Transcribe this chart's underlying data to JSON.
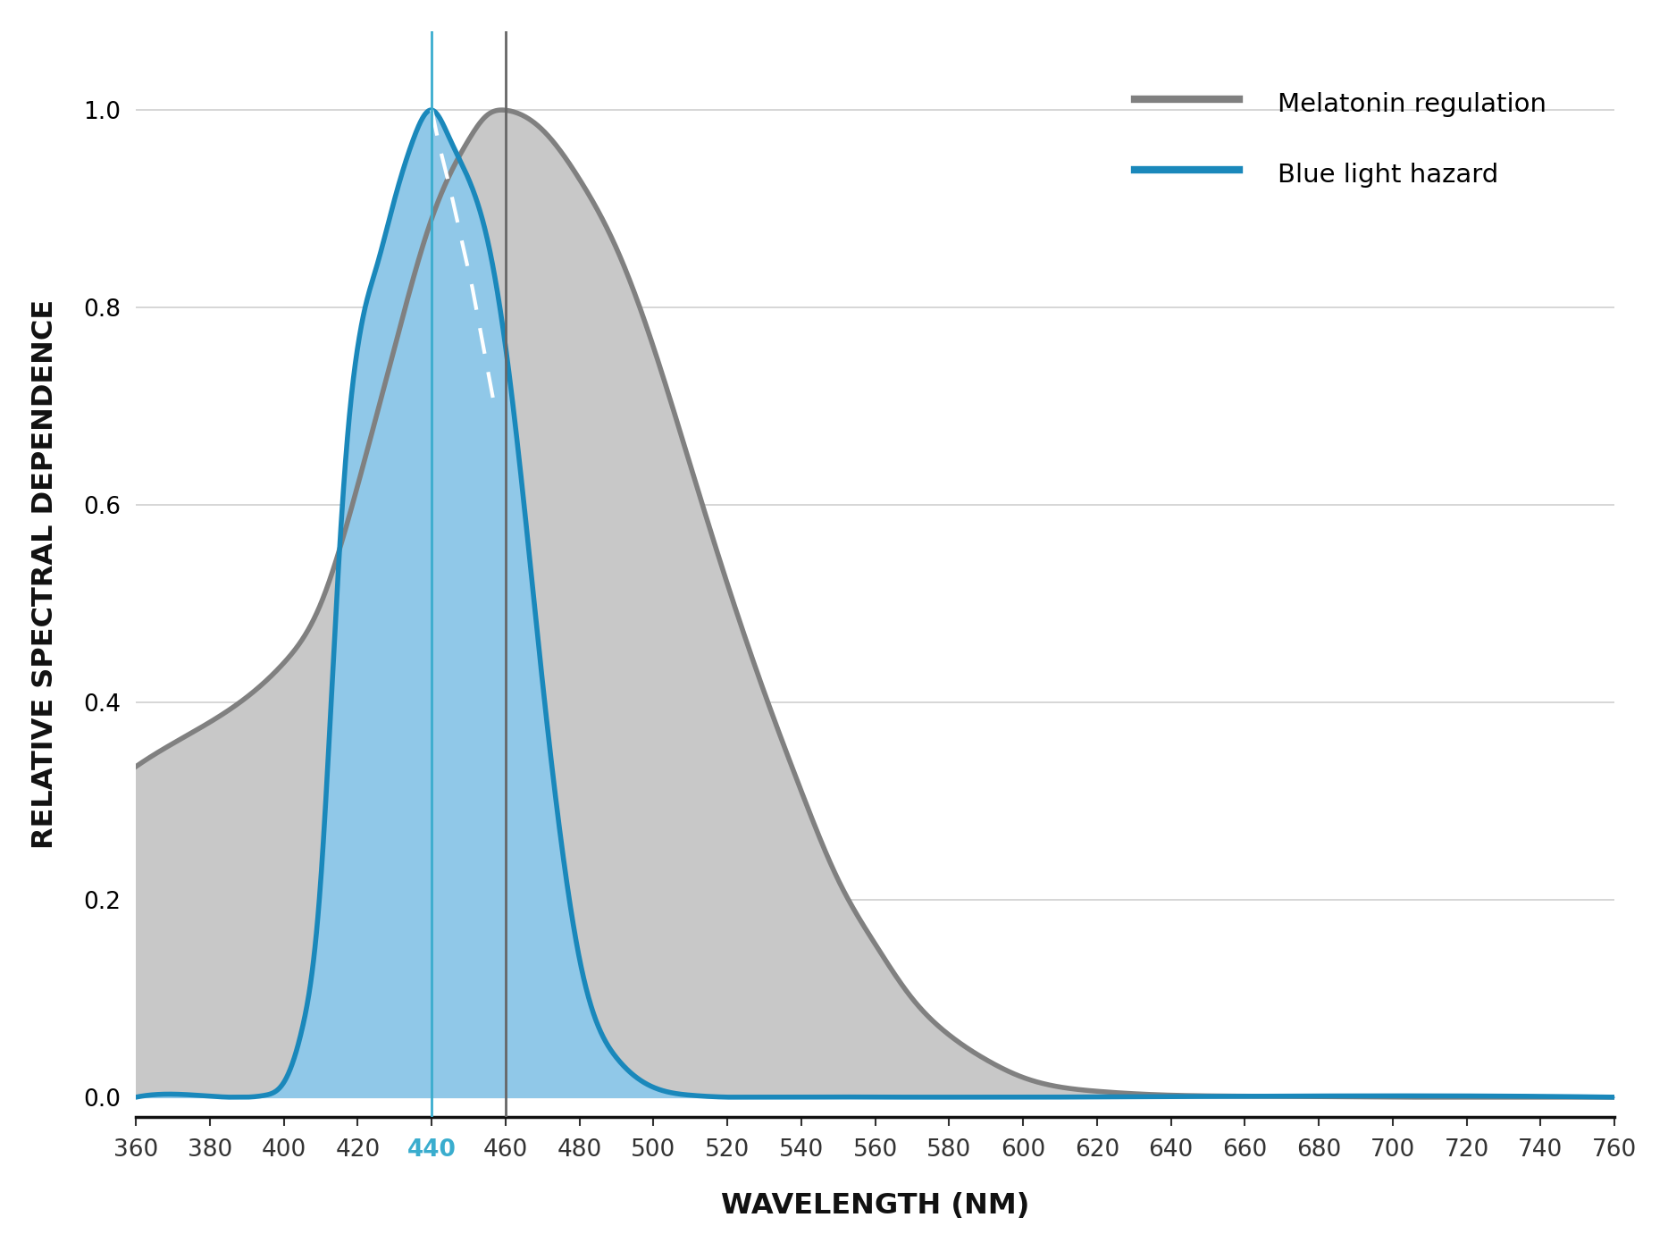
{
  "background_color": "#ffffff",
  "xlabel": "WAVELENGTH (NM)",
  "ylabel": "RELATIVE SPECTRAL DEPENDENCE",
  "xlim": [
    360,
    760
  ],
  "ylim": [
    -0.02,
    1.08
  ],
  "xticks": [
    360,
    380,
    400,
    420,
    440,
    460,
    480,
    500,
    520,
    540,
    560,
    580,
    600,
    620,
    640,
    660,
    680,
    700,
    720,
    740,
    760
  ],
  "yticks": [
    0.0,
    0.2,
    0.4,
    0.6,
    0.8,
    1.0
  ],
  "x440_color": "#3aadce",
  "x460_color": "#666666",
  "gray_fill_color": "#c8c8c8",
  "blue_fill_color": "#90c8e8",
  "blue_line_color": "#1a88bb",
  "gray_line_color": "#808080",
  "legend_gray_label": "Melatonin regulation",
  "legend_blue_label": "Blue light hazard",
  "tick_fontsize": 19,
  "axis_label_fontsize": 23,
  "legend_fontsize": 21,
  "melatonin_knots_x": [
    360,
    380,
    400,
    410,
    420,
    430,
    440,
    450,
    455,
    460,
    470,
    480,
    490,
    500,
    510,
    520,
    530,
    540,
    550,
    560,
    570,
    580,
    590,
    600,
    620,
    640,
    660,
    700,
    760
  ],
  "melatonin_knots_y": [
    0.335,
    0.38,
    0.44,
    0.5,
    0.62,
    0.76,
    0.89,
    0.97,
    0.995,
    1.0,
    0.98,
    0.93,
    0.86,
    0.76,
    0.64,
    0.52,
    0.41,
    0.31,
    0.22,
    0.155,
    0.1,
    0.063,
    0.038,
    0.02,
    0.006,
    0.002,
    0.001,
    0.0,
    0.0
  ],
  "blue_knots_x": [
    360,
    385,
    390,
    395,
    400,
    405,
    410,
    415,
    418,
    420,
    422,
    425,
    430,
    435,
    440,
    445,
    450,
    455,
    460,
    465,
    470,
    475,
    480,
    490,
    500,
    510,
    520,
    540,
    570,
    600,
    760
  ],
  "blue_knots_y": [
    0.0,
    0.0,
    0.0,
    0.002,
    0.015,
    0.07,
    0.22,
    0.55,
    0.7,
    0.76,
    0.8,
    0.84,
    0.91,
    0.97,
    1.0,
    0.97,
    0.93,
    0.87,
    0.76,
    0.6,
    0.42,
    0.26,
    0.14,
    0.04,
    0.01,
    0.002,
    0.0,
    0.0,
    0.0,
    0.0,
    0.0
  ],
  "dashed_x": [
    440,
    442,
    445,
    448,
    451,
    454,
    457
  ],
  "dashed_y": [
    1.0,
    0.965,
    0.92,
    0.87,
    0.82,
    0.76,
    0.7
  ]
}
